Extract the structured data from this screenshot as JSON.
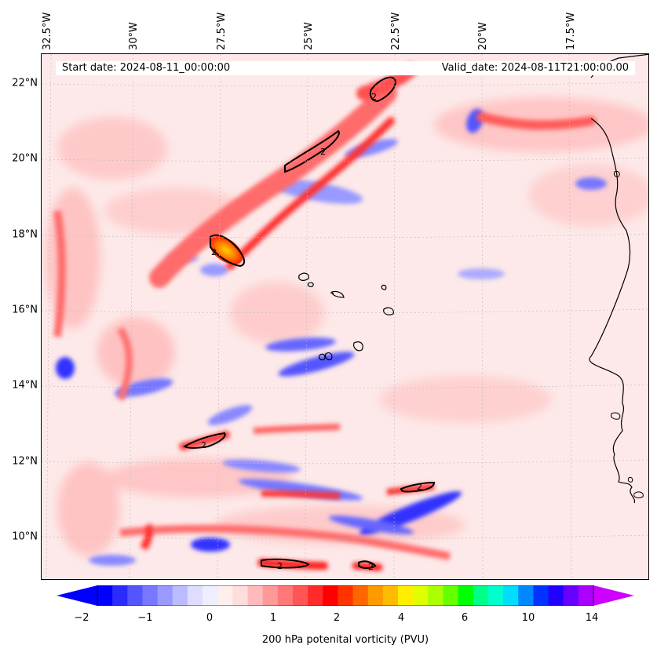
{
  "header": {
    "start_date": "Start date: 2024-08-11_00:00:00",
    "valid_date": "Valid_date: 2024-08-11T21:00:00.00"
  },
  "longitude_labels": [
    "32.5°W",
    "30°W",
    "27.5°W",
    "25°W",
    "22.5°W",
    "20°W",
    "17.5°W"
  ],
  "latitude_labels": [
    "22°N",
    "20°N",
    "18°N",
    "16°N",
    "14°N",
    "12°N",
    "10°N"
  ],
  "colorbar": {
    "title": "200 hPa potenital vorticity (PVU)",
    "tick_labels": [
      "−2",
      "−1",
      "0",
      "1",
      "2",
      "4",
      "6",
      "10",
      "14"
    ],
    "colors": [
      "#0000ff",
      "#2b2bff",
      "#5555ff",
      "#7777ff",
      "#9999ff",
      "#bbbbff",
      "#ddddff",
      "#eeeeff",
      "#ffeeee",
      "#ffdddd",
      "#ffbbbb",
      "#ff9999",
      "#ff7777",
      "#ff5555",
      "#ff2b2b",
      "#ff0000",
      "#ff3300",
      "#ff6600",
      "#ff9900",
      "#ffbb00",
      "#ffee00",
      "#ddff00",
      "#aaff00",
      "#66ff00",
      "#00ff00",
      "#00ff88",
      "#00ffcc",
      "#00ddff",
      "#0088ff",
      "#0033ff",
      "#2200ff",
      "#6600ff",
      "#aa00ff"
    ],
    "under_color": "#0000ff",
    "over_color": "#cc00ff"
  },
  "contour_labels": [
    "2",
    "2",
    "2",
    "2",
    "2",
    "2",
    "2",
    "2"
  ],
  "colors": {
    "land_outline": "#000000",
    "grid": "#bbbbbb"
  }
}
